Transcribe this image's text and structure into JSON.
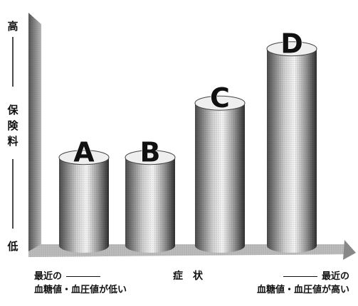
{
  "chart_data": {
    "type": "bar",
    "categories": [
      "A",
      "B",
      "C",
      "D"
    ],
    "values": [
      1.3,
      1.3,
      2.1,
      2.9
    ],
    "ylim": [
      0,
      3.2
    ],
    "grid": false,
    "y_axis": {
      "top_label": "高",
      "title": "保険料",
      "bottom_label": "低"
    },
    "x_axis": {
      "title": "症状",
      "left_end_label_line1": "最近の",
      "left_end_label_line2": "血糖値・血圧値が低い",
      "right_end_label_line1": "最近の",
      "right_end_label_line2": "血糖値・血圧値が高い"
    },
    "colors": {
      "bar_dark": "#3a3a3a",
      "bar_light": "#f4f4f4",
      "cap": "#efefef",
      "floor": "#bdbdbd",
      "ink": "#111111"
    }
  }
}
